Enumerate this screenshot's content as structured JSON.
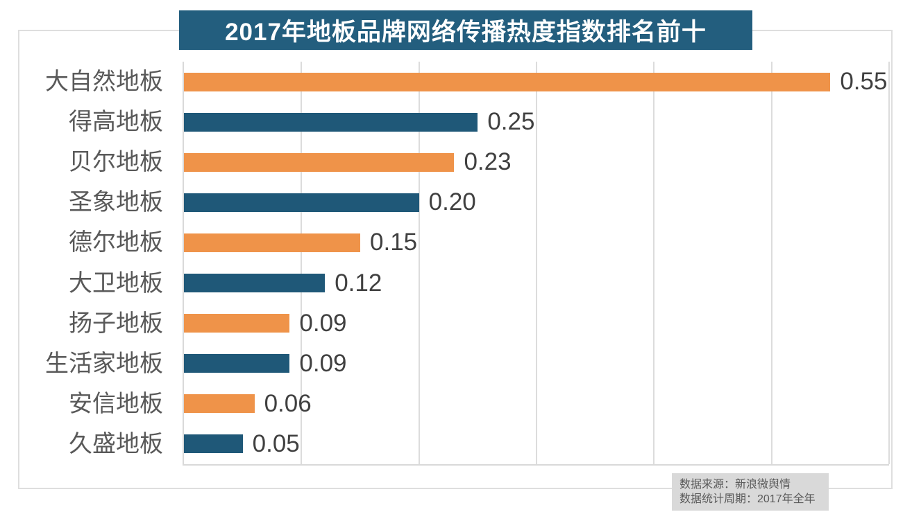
{
  "chart_data": {
    "type": "bar",
    "orientation": "horizontal",
    "title": "2017年地板品牌网络传播热度指数排名前十",
    "categories": [
      "大自然地板",
      "得高地板",
      "贝尔地板",
      "圣象地板",
      "德尔地板",
      "大卫地板",
      "扬子地板",
      "生活家地板",
      "安信地板",
      "久盛地板"
    ],
    "values": [
      0.55,
      0.25,
      0.23,
      0.2,
      0.15,
      0.12,
      0.09,
      0.09,
      0.06,
      0.05
    ],
    "value_labels": [
      "0.55",
      "0.25",
      "0.23",
      "0.20",
      "0.15",
      "0.12",
      "0.09",
      "0.09",
      "0.06",
      "0.05"
    ],
    "xlabel": "",
    "ylabel": "",
    "xlim": [
      0,
      0.6
    ],
    "grid_step": 0.1,
    "grid": true,
    "legend": false,
    "bar_palette": [
      "#ef9349",
      "#1f5878"
    ]
  },
  "footer": {
    "source": "数据来源：新浪微舆情",
    "period": "数据统计周期：2017年全年"
  },
  "colors": {
    "title_bg": "#235e7e",
    "title_text": "#ffffff",
    "bar_orange": "#ef9349",
    "bar_teal": "#1f5878",
    "grid": "#dcdcdc",
    "frame": "#dedede",
    "category_label": "#595959",
    "value_label": "#404040",
    "footer_bg": "#d9d9d9",
    "footer_text": "#595959"
  }
}
